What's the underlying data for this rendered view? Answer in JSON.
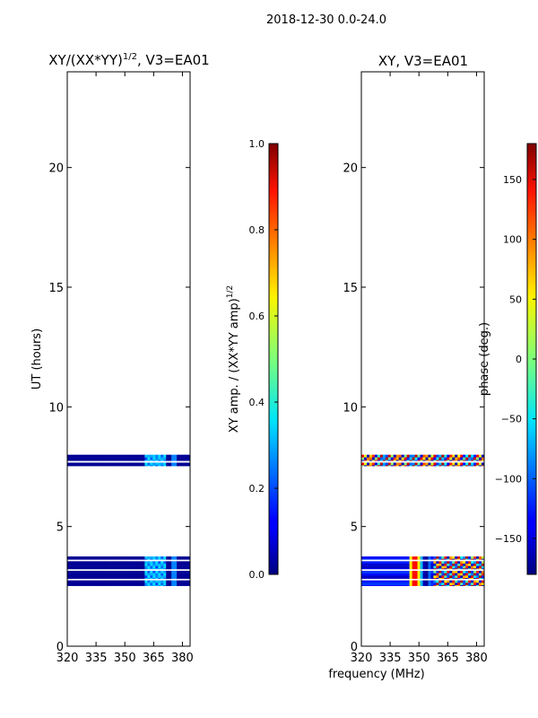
{
  "suptitle": "2018-12-30 0.0-24.0",
  "shared_xlabel": "frequency (MHz)",
  "chart_data": [
    {
      "type": "heatmap",
      "title_main": "XY/(XX*YY)",
      "title_sup": "1/2",
      "title_tail": ", V3=EA01",
      "xlabel": "",
      "ylabel": "UT (hours)",
      "xlim": [
        320,
        384
      ],
      "ylim": [
        0,
        24
      ],
      "xticks": [
        320,
        335,
        350,
        365,
        380
      ],
      "yticks": [
        0,
        5,
        10,
        15,
        20
      ],
      "data_rows_ut": [
        [
          2.45,
          3.75
        ],
        [
          7.45,
          8.0
        ]
      ],
      "colorbar": {
        "label_main": "XY amp. / (XX*YY amp)",
        "label_sup": "1/2",
        "range": [
          0.0,
          1.0
        ],
        "ticks": [
          "0.0",
          "0.2",
          "0.4",
          "0.6",
          "0.8",
          "1.0"
        ],
        "tick_values": [
          0,
          0.2,
          0.4,
          0.6,
          0.8,
          1.0
        ]
      }
    },
    {
      "type": "heatmap",
      "title_main": "XY, V3=EA01",
      "xlabel": "",
      "ylabel": "",
      "xlim": [
        320,
        384
      ],
      "ylim": [
        0,
        24
      ],
      "xticks": [
        320,
        335,
        350,
        365,
        380
      ],
      "yticks": [
        0,
        5,
        10,
        15,
        20
      ],
      "data_rows_ut": [
        [
          2.45,
          3.75
        ],
        [
          7.45,
          8.0
        ]
      ],
      "colorbar": {
        "label_main": "phase (deg.)",
        "range": [
          -180,
          180
        ],
        "ticks": [
          "−150",
          "−100",
          "−50",
          "0",
          "50",
          "100",
          "150"
        ],
        "tick_values": [
          -150,
          -100,
          -50,
          0,
          50,
          100,
          150
        ]
      }
    }
  ]
}
